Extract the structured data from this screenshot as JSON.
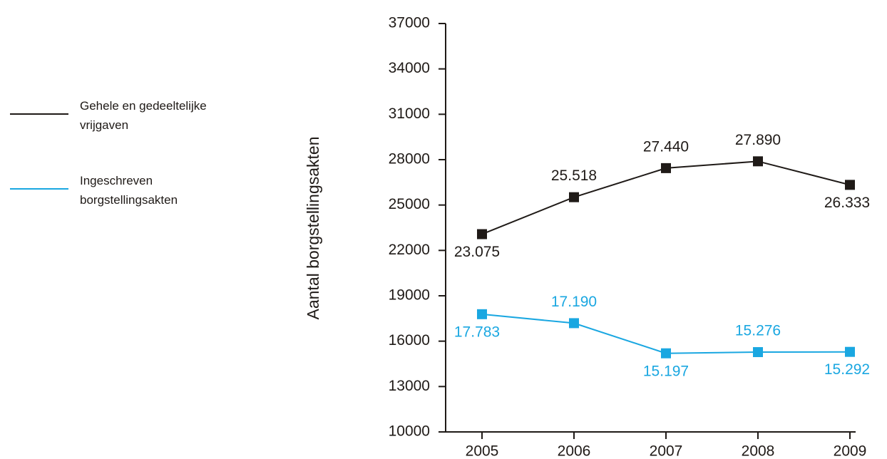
{
  "chart_data": {
    "type": "line",
    "x": [
      "2005",
      "2006",
      "2007",
      "2008",
      "2009"
    ],
    "ylabel": "Aantal borgstellingsakten",
    "ylim": [
      10000,
      37000
    ],
    "yticks": [
      10000,
      13000,
      16000,
      19000,
      22000,
      25000,
      28000,
      31000,
      34000,
      37000
    ],
    "grid": false,
    "legend_position": "left",
    "series": [
      {
        "name": "Gehele en gedeeltelijke vrijgaven",
        "color": "#1f1a17",
        "values": [
          23075,
          25518,
          27440,
          27890,
          26333
        ],
        "labels": [
          "23.075",
          "25.518",
          "27.440",
          "27.890",
          "26.333"
        ],
        "label_positions": [
          "below",
          "above",
          "above",
          "above",
          "below"
        ]
      },
      {
        "name": "Ingeschreven borgstellingsakten",
        "color": "#1aa7e1",
        "values": [
          17783,
          17190,
          15197,
          15276,
          15292
        ],
        "labels": [
          "17.783",
          "17.190",
          "15.197",
          "15.276",
          "15.292"
        ],
        "label_positions": [
          "below",
          "above",
          "below",
          "above",
          "below"
        ]
      }
    ]
  }
}
